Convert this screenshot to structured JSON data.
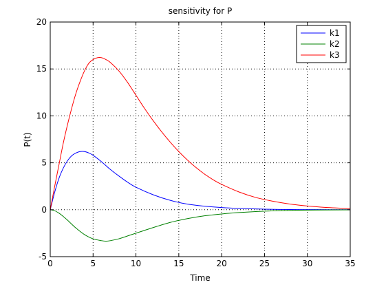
{
  "chart_data": {
    "type": "line",
    "title": "sensitivity for P",
    "xlabel": "Time",
    "ylabel": "P(t)",
    "xlim": [
      0,
      35
    ],
    "ylim": [
      -5,
      20
    ],
    "xticks": [
      0,
      5,
      10,
      15,
      20,
      25,
      30,
      35
    ],
    "yticks": [
      -5,
      0,
      5,
      10,
      15,
      20
    ],
    "xtick_labels": [
      "0",
      "5",
      "10",
      "15",
      "20",
      "25",
      "30",
      "35"
    ],
    "ytick_labels": [
      "-5",
      "0",
      "5",
      "10",
      "15",
      "20"
    ],
    "grid": true,
    "legend_position": "top-right",
    "series": [
      {
        "name": "k1",
        "color": "#0000ff",
        "x": [
          0,
          0.5,
          1,
          1.5,
          2,
          2.5,
          3,
          3.5,
          4,
          4.5,
          5,
          6,
          7,
          8,
          9,
          10,
          12,
          14,
          16,
          18,
          20,
          22,
          25,
          28,
          31,
          35
        ],
        "y": [
          0,
          1.8,
          3.3,
          4.4,
          5.2,
          5.75,
          6.05,
          6.2,
          6.2,
          6.05,
          5.8,
          5.1,
          4.3,
          3.6,
          2.95,
          2.4,
          1.6,
          1.0,
          0.6,
          0.38,
          0.23,
          0.14,
          0.06,
          0.02,
          0.01,
          0.0
        ]
      },
      {
        "name": "k2",
        "color": "#008000",
        "x": [
          0,
          0.5,
          1,
          1.5,
          2,
          3,
          4,
          5,
          6,
          6.5,
          7,
          8,
          9,
          10,
          12,
          14,
          16,
          18,
          20,
          22,
          25,
          28,
          31,
          35
        ],
        "y": [
          0,
          -0.1,
          -0.35,
          -0.7,
          -1.1,
          -1.95,
          -2.65,
          -3.1,
          -3.3,
          -3.35,
          -3.3,
          -3.1,
          -2.8,
          -2.5,
          -1.9,
          -1.35,
          -0.95,
          -0.65,
          -0.45,
          -0.3,
          -0.15,
          -0.07,
          -0.03,
          -0.01
        ]
      },
      {
        "name": "k3",
        "color": "#ff0000",
        "x": [
          0,
          0.5,
          1,
          1.5,
          2,
          2.5,
          3,
          3.5,
          4,
          4.5,
          5,
          5.5,
          6,
          6.5,
          7,
          8,
          9,
          10,
          11,
          12,
          13,
          14,
          15,
          16,
          17,
          18,
          19,
          20,
          22,
          24,
          26,
          28,
          30,
          32,
          35
        ],
        "y": [
          0,
          2.4,
          4.7,
          7.0,
          9.0,
          10.8,
          12.4,
          13.7,
          14.8,
          15.6,
          16.0,
          16.2,
          16.2,
          16.0,
          15.7,
          14.8,
          13.6,
          12.2,
          10.8,
          9.5,
          8.3,
          7.2,
          6.2,
          5.3,
          4.5,
          3.8,
          3.2,
          2.7,
          1.9,
          1.3,
          0.9,
          0.6,
          0.4,
          0.25,
          0.12
        ]
      }
    ]
  }
}
